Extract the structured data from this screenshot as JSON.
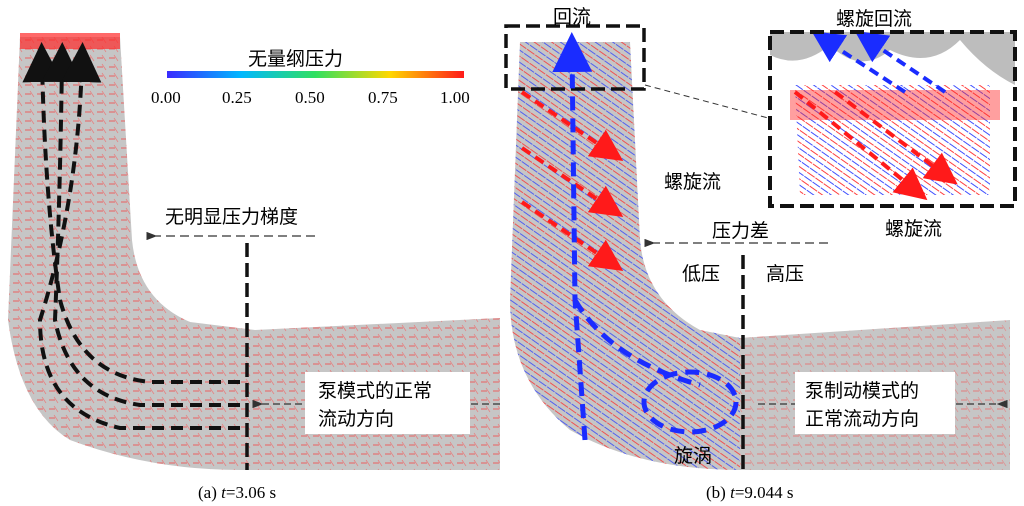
{
  "colorbar": {
    "title": "无量纲压力",
    "ticks": [
      "0.00",
      "0.25",
      "0.50",
      "0.75",
      "1.00"
    ],
    "colors": [
      "#3030ff",
      "#00c0ff",
      "#40d040",
      "#ffd000",
      "#ff2020"
    ]
  },
  "panel_a": {
    "caption_prefix": "(a) ",
    "caption_var": "t",
    "caption_value": "=3.06 s",
    "annotation_gradient": "无明显压力梯度",
    "annotation_flow_line1": "泵模式的正常",
    "annotation_flow_line2": "流动方向"
  },
  "panel_b": {
    "caption_prefix": "(b) ",
    "caption_var": "t",
    "caption_value": "=9.044 s",
    "label_backflow": "回流",
    "label_spiral_backflow": "螺旋回流",
    "label_spiral_flow": "螺旋流",
    "label_spiral_flow_inset": "螺旋流",
    "label_pressure_diff": "压力差",
    "label_low": "低压",
    "label_high": "高压",
    "label_vortex": "旋涡",
    "annotation_flow_line1": "泵制动模式的",
    "annotation_flow_line2": "正常流动方向"
  },
  "styles": {
    "geometry_fill": "#c4c4c4",
    "vector_red": "#ff2a2a",
    "vector_blue": "#2a3cff",
    "dashed_black": "#111111"
  }
}
